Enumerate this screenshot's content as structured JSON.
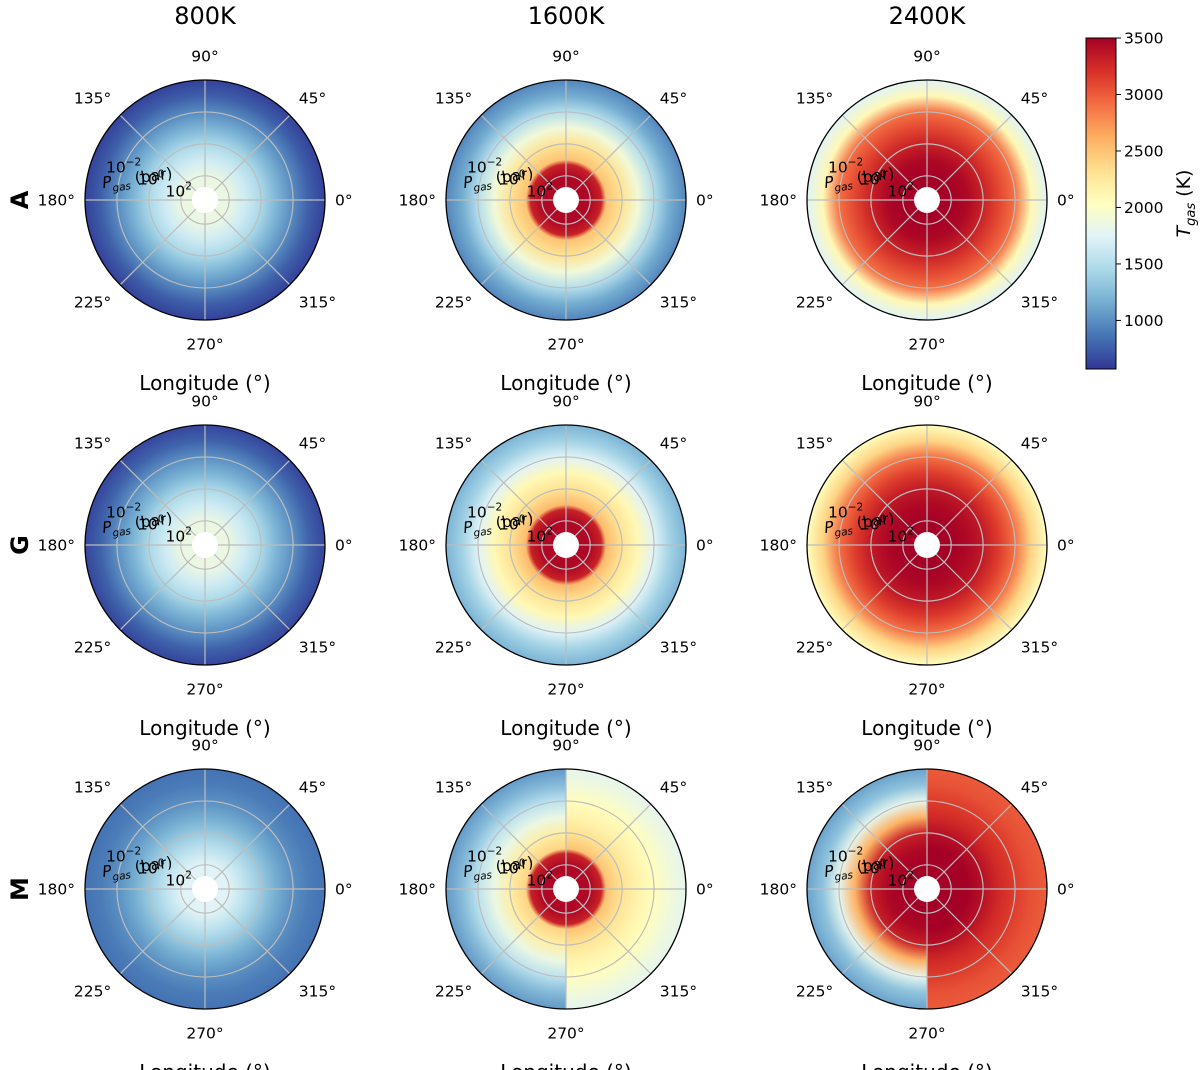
{
  "chart_data": {
    "type": "heatmap",
    "projection": "polar",
    "description_units": {
      "angle": "Longitude (°)",
      "radius": "P_gas (bar), log scale, 10^2 at centre to 10^-4 at edge"
    },
    "columns": [
      {
        "key": "800K",
        "title": "800K"
      },
      {
        "key": "1600K",
        "title": "1600K"
      },
      {
        "key": "2400K",
        "title": "2400K"
      }
    ],
    "rows": [
      {
        "key": "A",
        "label": "A"
      },
      {
        "key": "G",
        "label": "G"
      },
      {
        "key": "M",
        "label": "M"
      }
    ],
    "theta_ticks": [
      "0°",
      "45°",
      "90°",
      "135°",
      "180°",
      "225°",
      "270°",
      "315°"
    ],
    "r_ticks": [
      {
        "base": "10",
        "exp": "2",
        "log_p": 2
      },
      {
        "base": "10",
        "exp": "0",
        "log_p": 0
      },
      {
        "base": "10",
        "exp": "−2",
        "log_p": -2
      }
    ],
    "radial_range_log_p": [
      2.7,
      -4
    ],
    "radial_label": {
      "main": "P",
      "sub": "gas",
      "unit": " (bar)"
    },
    "xlabel": "Longitude (°)",
    "colorbar": {
      "label_main": "T",
      "label_sub": "gas",
      "label_unit": " (K)",
      "range": [
        570,
        3500
      ],
      "ticks": [
        "1000",
        "1500",
        "2000",
        "2500",
        "3000",
        "3500"
      ],
      "tick_values": [
        1000,
        1500,
        2000,
        2500,
        3000,
        3500
      ],
      "colormap": "RdYlBu_r"
    },
    "panels": [
      {
        "row": "A",
        "col": "800K",
        "temps_by_log_p": [
          [
            2,
            1850
          ],
          [
            1,
            1650
          ],
          [
            0,
            1450
          ],
          [
            -1,
            1200
          ],
          [
            -2,
            980
          ],
          [
            -3,
            760
          ],
          [
            -4,
            620
          ]
        ],
        "day_night": false
      },
      {
        "row": "A",
        "col": "1600K",
        "temps_by_log_p": [
          [
            2,
            3450
          ],
          [
            1.3,
            3300
          ],
          [
            1,
            2500
          ],
          [
            0,
            2300
          ],
          [
            -1,
            1900
          ],
          [
            -2,
            1500
          ],
          [
            -3,
            1150
          ],
          [
            -4,
            950
          ]
        ],
        "day_night": false
      },
      {
        "row": "A",
        "col": "2400K",
        "temps_by_log_p": [
          [
            2,
            3500
          ],
          [
            1,
            3450
          ],
          [
            0,
            3300
          ],
          [
            -1,
            3100
          ],
          [
            -2,
            2900
          ],
          [
            -3,
            2100
          ],
          [
            -4,
            1750
          ]
        ],
        "day_night": false
      },
      {
        "row": "G",
        "col": "800K",
        "temps_by_log_p": [
          [
            2,
            1850
          ],
          [
            1,
            1650
          ],
          [
            0,
            1450
          ],
          [
            -1,
            1200
          ],
          [
            -2,
            1000
          ],
          [
            -3,
            780
          ],
          [
            -4,
            640
          ]
        ],
        "day_night": false
      },
      {
        "row": "G",
        "col": "1600K",
        "temps_by_log_p": [
          [
            2,
            3450
          ],
          [
            1.3,
            3300
          ],
          [
            1,
            2550
          ],
          [
            0,
            2300
          ],
          [
            -1,
            2100
          ],
          [
            -2,
            1750
          ],
          [
            -3,
            1400
          ],
          [
            -4,
            1200
          ]
        ],
        "day_night": false
      },
      {
        "row": "G",
        "col": "2400K",
        "temps_by_log_p": [
          [
            2,
            3500
          ],
          [
            1,
            3450
          ],
          [
            0,
            3350
          ],
          [
            -1,
            3150
          ],
          [
            -2,
            2900
          ],
          [
            -3,
            2400
          ],
          [
            -4,
            2050
          ]
        ],
        "day_night": false
      },
      {
        "row": "M",
        "col": "800K",
        "temps_by_log_p": [
          [
            2,
            1750
          ],
          [
            1,
            1550
          ],
          [
            0,
            1350
          ],
          [
            -1,
            1150
          ],
          [
            -2,
            1000
          ],
          [
            -3,
            900
          ],
          [
            -4,
            850
          ]
        ],
        "day_night": false
      },
      {
        "row": "M",
        "col": "1600K",
        "day_night": true,
        "day_temps_by_log_p": [
          [
            2,
            3450
          ],
          [
            1.3,
            3300
          ],
          [
            1,
            2500
          ],
          [
            0,
            2300
          ],
          [
            -1,
            2150
          ],
          [
            -2,
            2050
          ],
          [
            -3,
            1900
          ],
          [
            -4,
            1800
          ]
        ],
        "night_temps_by_log_p": [
          [
            2,
            3450
          ],
          [
            1.3,
            3300
          ],
          [
            1,
            2400
          ],
          [
            0,
            2200
          ],
          [
            -1,
            1850
          ],
          [
            -2,
            1550
          ],
          [
            -3,
            1250
          ],
          [
            -4,
            1050
          ]
        ]
      },
      {
        "row": "M",
        "col": "2400K",
        "day_night": true,
        "day_temps_by_log_p": [
          [
            2,
            3500
          ],
          [
            1,
            3500
          ],
          [
            0,
            3400
          ],
          [
            -1,
            3250
          ],
          [
            -2,
            3150
          ],
          [
            -3,
            3050
          ],
          [
            -4,
            3000
          ]
        ],
        "night_temps_by_log_p": [
          [
            2,
            3500
          ],
          [
            1,
            3450
          ],
          [
            0,
            3300
          ],
          [
            -1,
            2600
          ],
          [
            -2,
            1800
          ],
          [
            -3,
            1300
          ],
          [
            -4,
            1100
          ]
        ]
      }
    ]
  }
}
